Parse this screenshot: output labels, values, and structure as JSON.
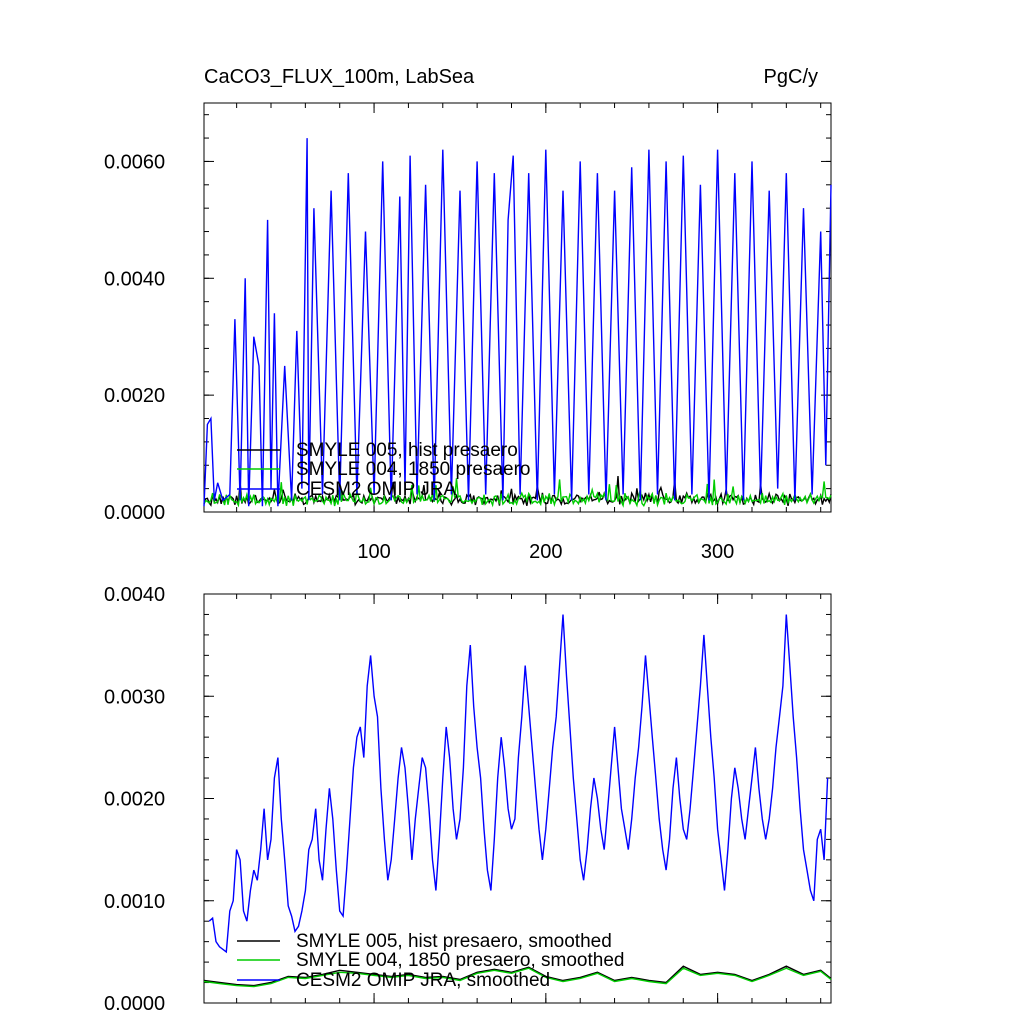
{
  "chart_data": [
    {
      "type": "line",
      "title": "CaCO3_FLUX_100m, LabSea",
      "units": "PgC/y",
      "xlim": [
        1,
        366
      ],
      "ylim": [
        0,
        0.007
      ],
      "x_ticks": [
        100,
        200,
        300
      ],
      "y_ticks": [
        0.0,
        0.002,
        0.004,
        0.006
      ],
      "y_tick_labels": [
        "0.0000",
        "0.0020",
        "0.0040",
        "0.0060"
      ],
      "legend": {
        "position": "bottom-left",
        "entries": [
          "SMYLE 005, hist presaero",
          "SMYLE 004, 1850 presaero",
          "CESM2 OMIP JRA"
        ]
      },
      "series": [
        {
          "name": "SMYLE 005, hist presaero",
          "color": "#000000",
          "pattern": "baseline",
          "values": [
            0.00022,
            0.00018,
            0.00025,
            0.0002
          ]
        },
        {
          "name": "SMYLE 004, 1850 presaero",
          "color": "#00cc00",
          "pattern": "baseline",
          "values": [
            0.00022,
            0.00018,
            0.00025,
            0.0002
          ]
        },
        {
          "name": "CESM2 OMIP JRA",
          "color": "#0000ff",
          "pattern": "spiky",
          "x": [
            1,
            3,
            5,
            7,
            9,
            12,
            16,
            19,
            22,
            25,
            27,
            30,
            33,
            35,
            38,
            40,
            42,
            44,
            48,
            52,
            55,
            58,
            61,
            62,
            65,
            70,
            75,
            80,
            85,
            90,
            95,
            100,
            105,
            110,
            115,
            118,
            121,
            125,
            130,
            135,
            140,
            145,
            150,
            155,
            160,
            165,
            170,
            175,
            178,
            181,
            185,
            190,
            195,
            200,
            205,
            210,
            215,
            220,
            225,
            230,
            235,
            240,
            245,
            250,
            255,
            260,
            265,
            270,
            275,
            280,
            285,
            290,
            295,
            300,
            305,
            310,
            315,
            320,
            325,
            330,
            335,
            340,
            345,
            350,
            355,
            360,
            363,
            366
          ],
          "y": [
            0.0001,
            0.0015,
            0.0016,
            0.0002,
            0.0005,
            0.0002,
            0.0003,
            0.0033,
            0.0002,
            0.004,
            0.0001,
            0.003,
            0.0025,
            0.0001,
            0.005,
            0.0004,
            0.0034,
            0.0001,
            0.0025,
            0.0002,
            0.0031,
            0.0004,
            0.0064,
            0.0002,
            0.0052,
            0.0003,
            0.0055,
            0.0002,
            0.0058,
            0.0003,
            0.0048,
            0.0003,
            0.006,
            0.0002,
            0.0054,
            0.0004,
            0.0061,
            0.0003,
            0.0056,
            0.0002,
            0.0062,
            0.0003,
            0.0055,
            0.0002,
            0.006,
            0.0003,
            0.0058,
            0.0002,
            0.005,
            0.0061,
            0.0003,
            0.0058,
            0.0002,
            0.0062,
            0.0003,
            0.0055,
            0.0002,
            0.006,
            0.0003,
            0.0058,
            0.0002,
            0.0055,
            0.0003,
            0.0059,
            0.0002,
            0.0062,
            0.0003,
            0.006,
            0.0002,
            0.0061,
            0.0003,
            0.0056,
            0.0002,
            0.0062,
            0.0003,
            0.0058,
            0.0002,
            0.006,
            0.0003,
            0.0055,
            0.0004,
            0.0058,
            0.0002,
            0.0052,
            0.0003,
            0.0048,
            0.0008,
            0.0056
          ]
        }
      ]
    },
    {
      "type": "line",
      "xlim": [
        1,
        366
      ],
      "ylim": [
        0,
        0.004
      ],
      "x_ticks": [
        100,
        200,
        300
      ],
      "y_ticks": [
        0.0,
        0.001,
        0.002,
        0.003,
        0.004
      ],
      "y_tick_labels": [
        "0.0000",
        "0.0010",
        "0.0020",
        "0.0030",
        "0.0040"
      ],
      "legend": {
        "position": "bottom-left",
        "entries": [
          "SMYLE 005, hist presaero, smoothed",
          "SMYLE 004, 1850 presaero, smoothed",
          "CESM2 OMIP JRA, smoothed"
        ]
      },
      "series": [
        {
          "name": "SMYLE 005, hist presaero, smoothed",
          "color": "#000000",
          "x": [
            1,
            10,
            20,
            30,
            40,
            50,
            60,
            70,
            80,
            90,
            100,
            110,
            120,
            130,
            140,
            150,
            160,
            170,
            180,
            190,
            200,
            210,
            220,
            230,
            240,
            250,
            260,
            270,
            280,
            290,
            300,
            310,
            320,
            330,
            340,
            350,
            360,
            366
          ],
          "y": [
            0.00022,
            0.0002,
            0.00018,
            0.00017,
            0.0002,
            0.00026,
            0.00025,
            0.00028,
            0.00032,
            0.0003,
            0.00028,
            0.00026,
            0.00028,
            0.00025,
            0.00026,
            0.00023,
            0.0003,
            0.00033,
            0.0003,
            0.00035,
            0.00026,
            0.00022,
            0.00025,
            0.0003,
            0.00022,
            0.00025,
            0.00022,
            0.0002,
            0.00036,
            0.00028,
            0.0003,
            0.00028,
            0.00022,
            0.00028,
            0.00036,
            0.00028,
            0.00032,
            0.00024
          ]
        },
        {
          "name": "SMYLE 004, 1850 presaero, smoothed",
          "color": "#00cc00",
          "x": [
            1,
            10,
            20,
            30,
            40,
            50,
            60,
            70,
            80,
            90,
            100,
            110,
            120,
            130,
            140,
            150,
            160,
            170,
            180,
            190,
            200,
            210,
            220,
            230,
            240,
            250,
            260,
            270,
            280,
            290,
            300,
            310,
            320,
            330,
            340,
            350,
            360,
            366
          ],
          "y": [
            0.00021,
            0.00019,
            0.00017,
            0.00016,
            0.00019,
            0.00025,
            0.00024,
            0.00027,
            0.0003,
            0.00029,
            0.00027,
            0.00025,
            0.00027,
            0.00024,
            0.00025,
            0.00022,
            0.00029,
            0.00032,
            0.00029,
            0.00034,
            0.00025,
            0.00021,
            0.00024,
            0.00029,
            0.00021,
            0.00024,
            0.00021,
            0.00019,
            0.00034,
            0.00027,
            0.00029,
            0.00027,
            0.00021,
            0.00027,
            0.00034,
            0.00027,
            0.00031,
            0.00023
          ]
        },
        {
          "name": "CESM2 OMIP JRA, smoothed",
          "color": "#0000ff",
          "x": [
            4,
            6,
            8,
            10,
            14,
            16,
            18,
            20,
            22,
            24,
            26,
            28,
            30,
            32,
            34,
            36,
            38,
            40,
            42,
            44,
            46,
            48,
            50,
            52,
            54,
            56,
            58,
            60,
            62,
            64,
            66,
            68,
            70,
            72,
            74,
            76,
            78,
            80,
            82,
            84,
            86,
            88,
            90,
            92,
            94,
            96,
            98,
            100,
            102,
            104,
            106,
            108,
            110,
            112,
            114,
            116,
            118,
            120,
            122,
            124,
            126,
            128,
            130,
            132,
            134,
            136,
            138,
            140,
            142,
            144,
            146,
            148,
            150,
            152,
            154,
            156,
            158,
            160,
            162,
            164,
            166,
            168,
            170,
            172,
            174,
            176,
            178,
            180,
            182,
            184,
            186,
            188,
            190,
            192,
            194,
            196,
            198,
            200,
            202,
            204,
            206,
            208,
            210,
            212,
            214,
            216,
            218,
            220,
            222,
            224,
            226,
            228,
            230,
            232,
            234,
            236,
            238,
            240,
            242,
            244,
            246,
            248,
            250,
            252,
            254,
            256,
            258,
            260,
            262,
            264,
            266,
            268,
            270,
            272,
            274,
            276,
            278,
            280,
            282,
            284,
            286,
            288,
            290,
            292,
            294,
            296,
            298,
            300,
            302,
            304,
            306,
            308,
            310,
            312,
            314,
            316,
            318,
            320,
            322,
            324,
            326,
            328,
            330,
            332,
            334,
            336,
            338,
            340,
            342,
            344,
            346,
            348,
            350,
            352,
            354,
            356,
            358,
            360,
            362,
            364
          ],
          "y": [
            0.0008,
            0.00083,
            0.0006,
            0.00055,
            0.0005,
            0.0009,
            0.001,
            0.0015,
            0.0014,
            0.0009,
            0.0008,
            0.0011,
            0.0013,
            0.0012,
            0.0015,
            0.0019,
            0.0014,
            0.0016,
            0.0022,
            0.0024,
            0.0018,
            0.0014,
            0.00095,
            0.00085,
            0.0007,
            0.00075,
            0.0009,
            0.0011,
            0.0015,
            0.0016,
            0.0019,
            0.0014,
            0.0012,
            0.0017,
            0.0021,
            0.0018,
            0.0013,
            0.0009,
            0.00085,
            0.0013,
            0.0018,
            0.0023,
            0.0026,
            0.0027,
            0.0024,
            0.0031,
            0.0034,
            0.003,
            0.0028,
            0.0021,
            0.0016,
            0.0012,
            0.0014,
            0.0018,
            0.0022,
            0.0025,
            0.0023,
            0.0019,
            0.0014,
            0.0018,
            0.0021,
            0.0024,
            0.0023,
            0.0019,
            0.0014,
            0.0011,
            0.0016,
            0.0022,
            0.0027,
            0.0024,
            0.0019,
            0.0016,
            0.0018,
            0.0023,
            0.0031,
            0.0035,
            0.0029,
            0.0025,
            0.0022,
            0.0017,
            0.0013,
            0.0011,
            0.0016,
            0.0022,
            0.0026,
            0.0023,
            0.0019,
            0.0017,
            0.0018,
            0.0024,
            0.0028,
            0.0033,
            0.0029,
            0.0025,
            0.0021,
            0.0017,
            0.0014,
            0.0017,
            0.0021,
            0.0025,
            0.0028,
            0.0033,
            0.0038,
            0.0032,
            0.0027,
            0.0022,
            0.0018,
            0.0014,
            0.0012,
            0.0015,
            0.0019,
            0.0022,
            0.002,
            0.0017,
            0.0015,
            0.0019,
            0.0023,
            0.0027,
            0.0023,
            0.0019,
            0.0017,
            0.0015,
            0.0018,
            0.0022,
            0.0025,
            0.0029,
            0.0034,
            0.003,
            0.0026,
            0.0022,
            0.0018,
            0.0015,
            0.0013,
            0.0016,
            0.0021,
            0.0024,
            0.002,
            0.0017,
            0.0016,
            0.0019,
            0.0023,
            0.0027,
            0.0031,
            0.0036,
            0.0031,
            0.0026,
            0.0022,
            0.0017,
            0.0014,
            0.0011,
            0.0015,
            0.002,
            0.0023,
            0.0021,
            0.0018,
            0.0016,
            0.0019,
            0.0022,
            0.0025,
            0.0021,
            0.0018,
            0.0016,
            0.0018,
            0.0021,
            0.0025,
            0.0028,
            0.0031,
            0.0038,
            0.0033,
            0.0028,
            0.0024,
            0.0019,
            0.0015,
            0.0013,
            0.0011,
            0.001,
            0.0016,
            0.0017,
            0.0014,
            0.0022
          ]
        }
      ]
    }
  ]
}
